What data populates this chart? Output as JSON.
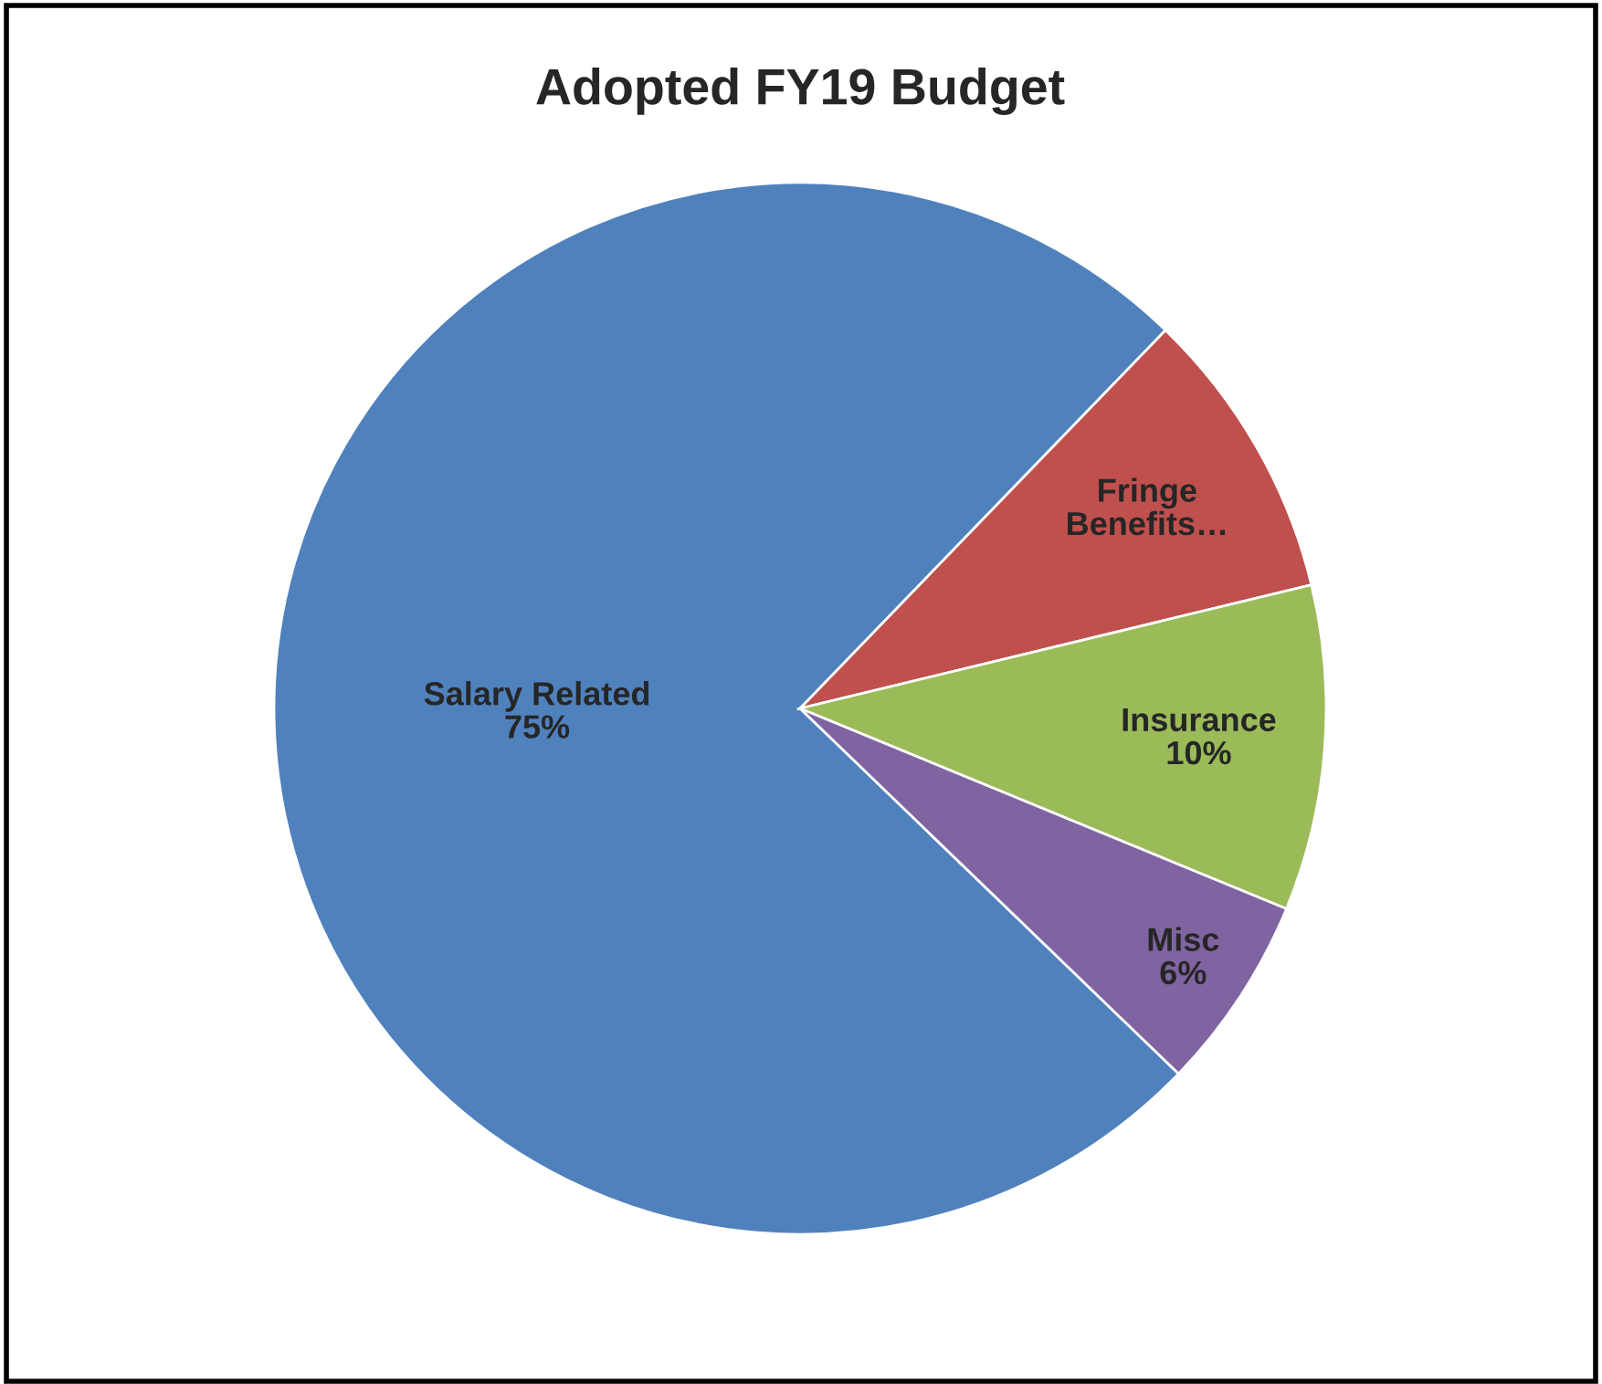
{
  "chart_data": {
    "type": "pie",
    "title": "Adopted FY19 Budget",
    "categories": [
      "Salary Related",
      "Fringe\nBenefits…",
      "Insurance",
      "Misc"
    ],
    "values": [
      75,
      9,
      10,
      6
    ],
    "value_labels": [
      "75%",
      null,
      "10%",
      "6%"
    ],
    "colors": [
      "#4f81bd",
      "#c0504d",
      "#9bbb59",
      "#8064a2"
    ],
    "legend": false
  }
}
